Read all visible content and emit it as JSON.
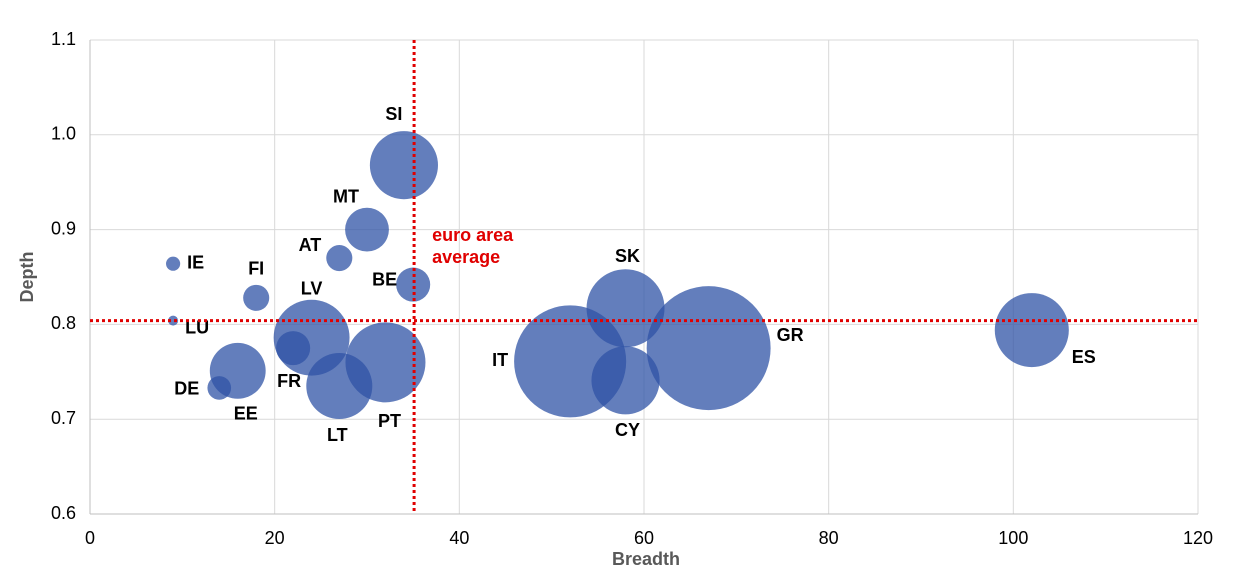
{
  "chart_data": {
    "type": "bubble",
    "x_label": "Breadth",
    "y_label": "Depth",
    "labels": [
      "IE",
      "LU",
      "FI",
      "AT",
      "MT",
      "SI",
      "BE",
      "LV",
      "FR",
      "DE",
      "EE",
      "LT",
      "PT",
      "IT",
      "SK",
      "CY",
      "GR",
      "ES"
    ],
    "x": [
      9,
      9,
      18,
      27,
      30,
      34,
      35,
      24,
      22,
      14,
      16,
      27,
      32,
      52,
      58,
      58,
      67,
      102
    ],
    "y": [
      0.864,
      0.804,
      0.828,
      0.87,
      0.9,
      0.968,
      0.842,
      0.786,
      0.775,
      0.733,
      0.751,
      0.735,
      0.76,
      0.761,
      0.817,
      0.741,
      0.775,
      0.794
    ],
    "sizes": [
      0.5,
      0.25,
      1.7,
      1.7,
      4.8,
      11.6,
      2.9,
      14.4,
      2.9,
      1.4,
      7.8,
      10.9,
      16,
      31.4,
      15.2,
      11.6,
      38.4,
      13.7
    ],
    "color": "#2f53a6",
    "xlim": [
      0,
      120
    ],
    "xticks": [
      0,
      20,
      40,
      60,
      80,
      100,
      120
    ],
    "ylim": [
      0.6,
      1.1
    ],
    "yticks": [
      0.6,
      0.7,
      0.8,
      0.9,
      {
        "value": 1.0,
        "label": "1.0"
      },
      1.1
    ],
    "grid": true,
    "x_reference": 35.1,
    "y_reference": 0.804,
    "reference_color": "#e00000",
    "annotation": [
      "euro area",
      "average"
    ]
  }
}
